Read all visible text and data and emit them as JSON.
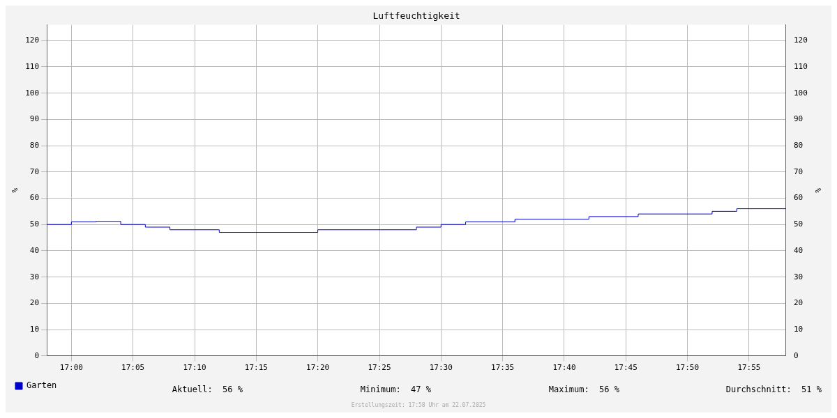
{
  "chart_data": {
    "type": "step",
    "title": "Luftfeuchtigkeit",
    "x": [
      16.9667,
      17,
      17.0333,
      17.0667,
      17.1,
      17.1333,
      17.2,
      17.3333,
      17.4667,
      17.5,
      17.5333,
      17.6,
      17.7,
      17.7667,
      17.8667,
      17.9,
      17.9667
    ],
    "series": [
      {
        "name": "Garten",
        "color": "#0000cc",
        "values": [
          50,
          51,
          51.2,
          50,
          49,
          48,
          47,
          48,
          49,
          50,
          51,
          52,
          53,
          54,
          55,
          56,
          56
        ]
      }
    ],
    "xlim": [
      16.9667,
      17.9667
    ],
    "xticks": [
      {
        "value": 17,
        "label": "17:00"
      },
      {
        "value": 17.0833,
        "label": "17:05"
      },
      {
        "value": 17.1667,
        "label": "17:10"
      },
      {
        "value": 17.25,
        "label": "17:15"
      },
      {
        "value": 17.3333,
        "label": "17:20"
      },
      {
        "value": 17.4167,
        "label": "17:25"
      },
      {
        "value": 17.5,
        "label": "17:30"
      },
      {
        "value": 17.5833,
        "label": "17:35"
      },
      {
        "value": 17.6667,
        "label": "17:40"
      },
      {
        "value": 17.75,
        "label": "17:45"
      },
      {
        "value": 17.8333,
        "label": "17:50"
      },
      {
        "value": 17.9167,
        "label": "17:55"
      }
    ],
    "ylim": [
      0,
      126
    ],
    "yticks": [
      0,
      10,
      20,
      30,
      40,
      50,
      60,
      70,
      80,
      90,
      100,
      110,
      120
    ],
    "y2lim": [
      0,
      126
    ],
    "y2ticks": [
      0,
      10,
      20,
      30,
      40,
      50,
      60,
      70,
      80,
      90,
      100,
      110,
      120
    ],
    "ylabel": "%",
    "y2label": "%",
    "grid": true,
    "legend": "bottom left",
    "annotations": [
      "Aktuell:  56 %",
      "Minimum:  47 %",
      "Maximum:  56 %",
      "Durchschnitt:  51 %",
      "Erstellungszeit: 17:58 Uhr am 22.07.2025"
    ]
  }
}
